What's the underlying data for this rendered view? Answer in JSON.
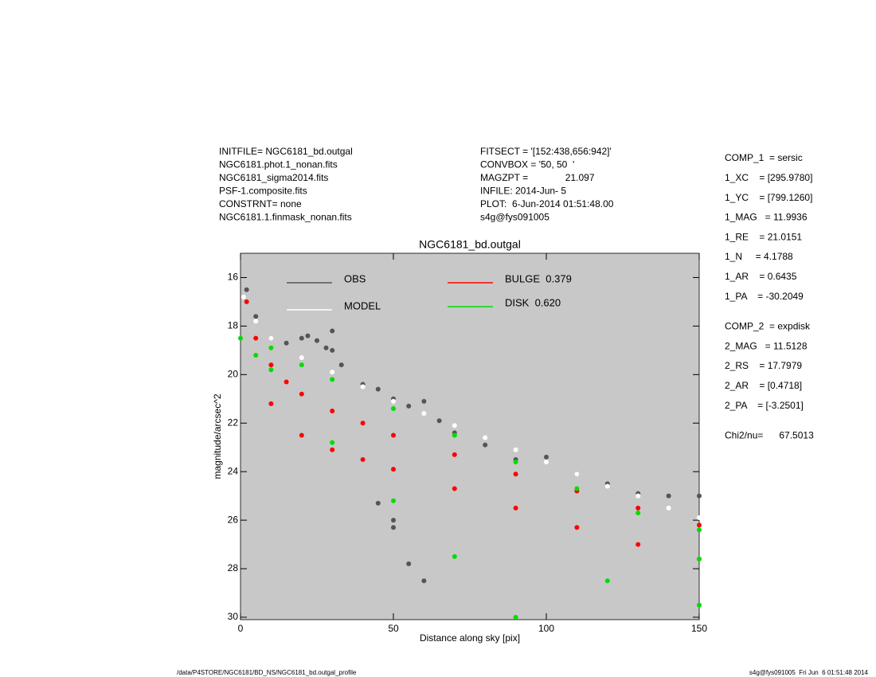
{
  "header_left": [
    "INITFILE= NGC6181_bd.outgal",
    "NGC6181.phot.1_nonan.fits",
    "NGC6181_sigma2014.fits",
    "PSF-1.composite.fits",
    "CONSTRNT= none",
    "NGC6181.1.finmask_nonan.fits"
  ],
  "header_middle": [
    "FITSECT = '[152:438,656:942]'",
    "CONVBOX = '50, 50  '",
    "MAGZPT =              21.097",
    "INFILE: 2014-Jun- 5",
    "PLOT:  6-Jun-2014 01:51:48.00",
    "s4g@fys091005"
  ],
  "right_panel": [
    [
      "COMP_1  = sersic",
      "1_XC    = [295.9780]",
      "1_YC    = [799.1260]",
      "1_MAG   = 11.9936",
      "1_RE    = 21.0151",
      "1_N     = 4.1788",
      "1_AR    = 0.6435",
      "1_PA    = -30.2049"
    ],
    [
      "COMP_2  = expdisk",
      "2_MAG   = 11.5128",
      "2_RS    = 17.7979",
      "2_AR    = [0.4718]",
      "2_PA    = [-3.2501]"
    ],
    [
      "Chi2/nu=      67.5013"
    ]
  ],
  "footer_left": "/data/P4STORE/NGC6181/BD_NS/NGC6181_bd.outgal_profile",
  "footer_right": "s4g@fys091005  Fri Jun  6 01:51:48 2014",
  "chart_data": {
    "type": "scatter",
    "title": "NGC6181_bd.outgal",
    "x_label": "Distance along sky [pix]",
    "y_label": "magnitude/arcsec^2",
    "xlim": [
      0,
      150
    ],
    "xticks": [
      0,
      50,
      100,
      150
    ],
    "ylim": [
      30.1,
      15
    ],
    "yticks": [
      16,
      18,
      20,
      22,
      24,
      26,
      28,
      30
    ],
    "background": "#c8c8c8",
    "series": [
      {
        "name": "OBS",
        "color": "#555555",
        "x": [
          2,
          5,
          10,
          15,
          20,
          22,
          25,
          28,
          30,
          33,
          40,
          45,
          50,
          55,
          60,
          65,
          70,
          80,
          90,
          100,
          110,
          120,
          130,
          140,
          150,
          45,
          50,
          55,
          60,
          50,
          30
        ],
        "values": [
          16.5,
          17.6,
          18.5,
          18.7,
          18.5,
          18.4,
          18.6,
          18.9,
          18.2,
          19.6,
          20.4,
          20.6,
          21.0,
          21.3,
          21.1,
          21.9,
          22.4,
          22.9,
          23.5,
          23.4,
          24.1,
          24.5,
          24.9,
          25.0,
          25.0,
          25.3,
          26.3,
          27.8,
          28.5,
          26.0,
          19.0
        ]
      },
      {
        "name": "MODEL",
        "color": "#ffffff",
        "x": [
          1,
          5,
          10,
          20,
          30,
          40,
          50,
          60,
          70,
          80,
          90,
          100,
          110,
          120,
          130,
          140,
          150
        ],
        "values": [
          16.8,
          17.8,
          18.5,
          19.3,
          19.9,
          20.5,
          21.1,
          21.6,
          22.1,
          22.6,
          23.1,
          23.6,
          24.1,
          24.6,
          25.0,
          25.5,
          25.9
        ]
      },
      {
        "name": "BULGE  0.379",
        "color": "#ff0000",
        "x": [
          2,
          5,
          10,
          15,
          20,
          30,
          40,
          50,
          70,
          90,
          110,
          130,
          150,
          150,
          130,
          110,
          90,
          70,
          50,
          40,
          30,
          20,
          10
        ],
        "values": [
          17.0,
          18.5,
          19.6,
          20.3,
          20.8,
          21.5,
          22.0,
          22.5,
          23.3,
          24.1,
          24.8,
          25.5,
          26.2,
          27.6,
          27.0,
          26.3,
          25.5,
          24.7,
          23.9,
          23.5,
          23.1,
          22.5,
          21.2
        ]
      },
      {
        "name": "DISK  0.620",
        "color": "#00dd00",
        "x": [
          0,
          10,
          20,
          30,
          50,
          70,
          90,
          110,
          130,
          150,
          150,
          150,
          120,
          90,
          70,
          50,
          30,
          10,
          5
        ],
        "values": [
          18.5,
          18.9,
          19.6,
          20.2,
          21.4,
          22.5,
          23.6,
          24.7,
          25.7,
          26.4,
          27.6,
          29.5,
          28.5,
          30.0,
          27.5,
          25.2,
          22.8,
          19.8,
          19.2
        ]
      }
    ]
  }
}
